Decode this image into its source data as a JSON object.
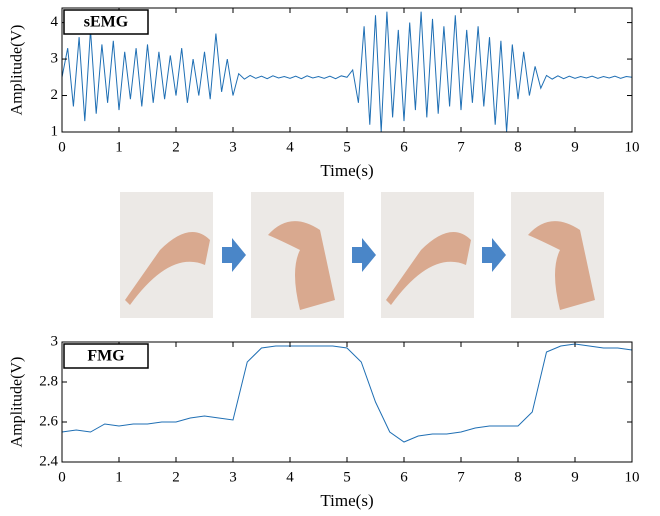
{
  "chart_data": [
    {
      "type": "line",
      "title": "sEMG",
      "xlabel": "Time(s)",
      "ylabel": "Amplitude(V)",
      "color": "#1f6fb4",
      "x": [
        0,
        0.1,
        0.2,
        0.3,
        0.4,
        0.5,
        0.6,
        0.7,
        0.8,
        0.9,
        1,
        1.1,
        1.2,
        1.3,
        1.4,
        1.5,
        1.6,
        1.7,
        1.8,
        1.9,
        2,
        2.1,
        2.2,
        2.3,
        2.4,
        2.5,
        2.6,
        2.7,
        2.8,
        2.9,
        3,
        3.1,
        3.2,
        3.3,
        3.4,
        3.5,
        3.6,
        3.7,
        3.8,
        3.9,
        4,
        4.1,
        4.2,
        4.3,
        4.4,
        4.5,
        4.6,
        4.7,
        4.8,
        4.9,
        5,
        5.1,
        5.2,
        5.3,
        5.4,
        5.5,
        5.6,
        5.7,
        5.8,
        5.9,
        6,
        6.1,
        6.2,
        6.3,
        6.4,
        6.5,
        6.6,
        6.7,
        6.8,
        6.9,
        7,
        7.1,
        7.2,
        7.3,
        7.4,
        7.5,
        7.6,
        7.7,
        7.8,
        7.9,
        8,
        8.1,
        8.2,
        8.3,
        8.4,
        8.5,
        8.6,
        8.7,
        8.8,
        8.9,
        9,
        9.1,
        9.2,
        9.3,
        9.4,
        9.5,
        9.6,
        9.7,
        9.8,
        9.9,
        10
      ],
      "values": [
        2.5,
        3.3,
        1.7,
        3.6,
        1.3,
        3.8,
        1.5,
        3.4,
        1.8,
        3.5,
        1.6,
        3.2,
        1.9,
        3.3,
        1.7,
        3.4,
        1.8,
        3.2,
        1.9,
        3.1,
        2.0,
        3.3,
        1.8,
        3.0,
        2.0,
        3.2,
        1.9,
        3.7,
        2.1,
        3.0,
        2.0,
        2.6,
        2.45,
        2.55,
        2.47,
        2.53,
        2.46,
        2.54,
        2.48,
        2.52,
        2.47,
        2.53,
        2.46,
        2.54,
        2.48,
        2.52,
        2.47,
        2.53,
        2.46,
        2.54,
        2.5,
        2.7,
        1.8,
        3.9,
        1.2,
        4.2,
        1.0,
        4.3,
        1.4,
        3.8,
        1.3,
        4.0,
        1.6,
        4.3,
        1.4,
        4.1,
        1.5,
        3.9,
        1.7,
        4.2,
        1.6,
        3.8,
        1.8,
        3.9,
        1.7,
        3.6,
        1.2,
        3.5,
        1.0,
        3.4,
        1.9,
        3.2,
        2.0,
        2.8,
        2.2,
        2.55,
        2.45,
        2.54,
        2.46,
        2.53,
        2.47,
        2.52,
        2.48,
        2.53,
        2.47,
        2.52,
        2.48,
        2.53,
        2.47,
        2.52,
        2.5
      ],
      "xlim": [
        0,
        10
      ],
      "xticks": [
        0,
        1,
        2,
        3,
        4,
        5,
        6,
        7,
        8,
        9,
        10
      ],
      "ylim": [
        1,
        4.4
      ],
      "yticks": [
        1,
        2,
        3,
        4
      ]
    },
    {
      "type": "line",
      "title": "FMG",
      "xlabel": "Time(s)",
      "ylabel": "Amplitude(V)",
      "color": "#1f6fb4",
      "x": [
        0,
        0.25,
        0.5,
        0.75,
        1,
        1.25,
        1.5,
        1.75,
        2,
        2.25,
        2.5,
        2.75,
        3,
        3.25,
        3.5,
        3.75,
        4,
        4.25,
        4.5,
        4.75,
        5,
        5.25,
        5.5,
        5.75,
        6,
        6.25,
        6.5,
        6.75,
        7,
        7.25,
        7.5,
        7.75,
        8,
        8.25,
        8.5,
        8.75,
        9,
        9.25,
        9.5,
        9.75,
        10
      ],
      "values": [
        2.55,
        2.56,
        2.55,
        2.59,
        2.58,
        2.59,
        2.59,
        2.6,
        2.6,
        2.62,
        2.63,
        2.62,
        2.61,
        2.9,
        2.97,
        2.98,
        2.98,
        2.98,
        2.98,
        2.98,
        2.97,
        2.9,
        2.7,
        2.55,
        2.5,
        2.53,
        2.54,
        2.54,
        2.55,
        2.57,
        2.58,
        2.58,
        2.58,
        2.65,
        2.95,
        2.98,
        2.99,
        2.98,
        2.97,
        2.97,
        2.96
      ],
      "xlim": [
        0,
        10
      ],
      "xticks": [
        0,
        1,
        2,
        3,
        4,
        5,
        6,
        7,
        8,
        9,
        10
      ],
      "ylim": [
        2.4,
        3
      ],
      "yticks": [
        2.4,
        2.6,
        2.8,
        3
      ]
    }
  ]
}
